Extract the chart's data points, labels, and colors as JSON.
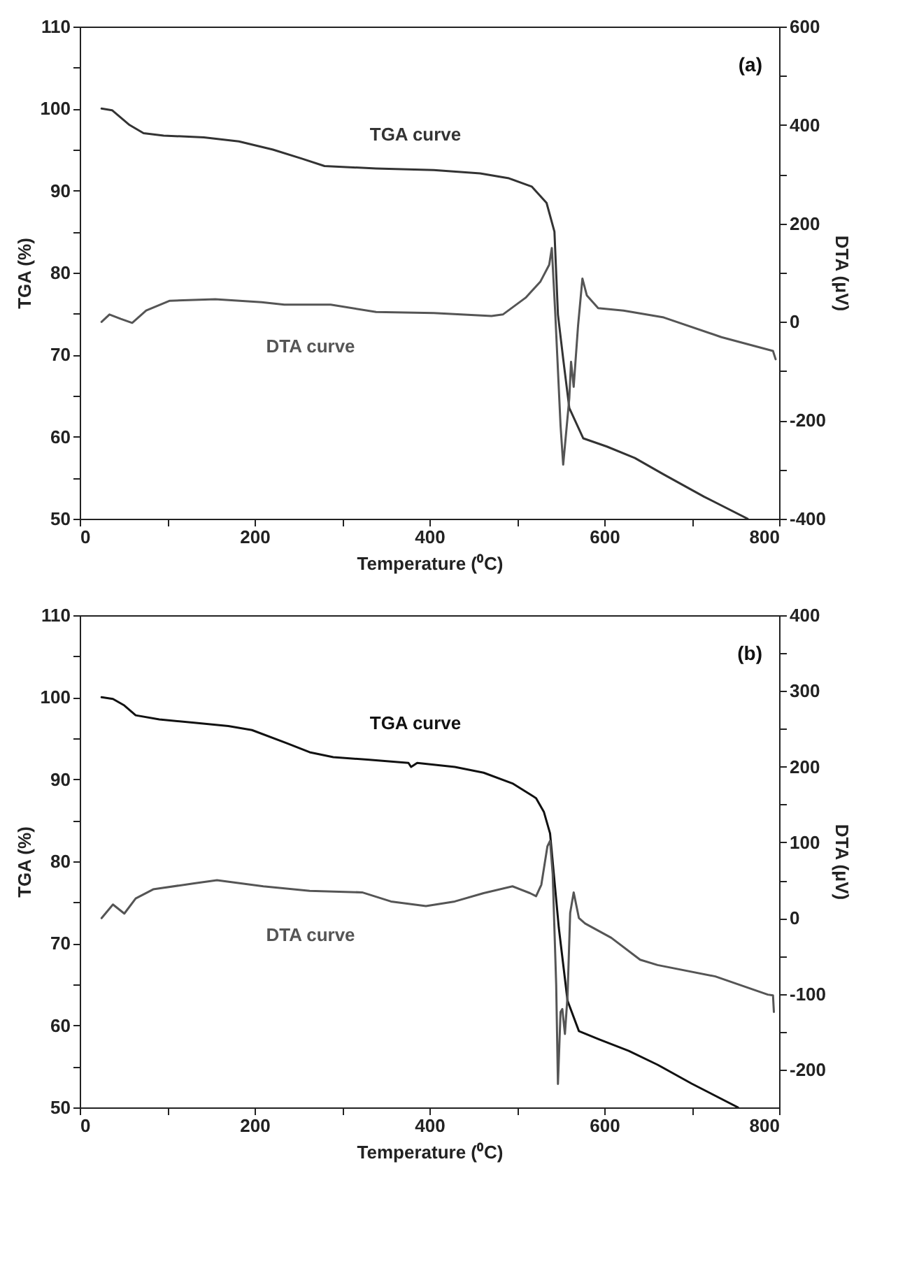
{
  "chart_data": [
    {
      "type": "line",
      "xlabel": "Temperature (⁰C)",
      "ylabel": "TGA (%)",
      "y2label": "DTA (μV)",
      "annotations": [
        "(a)"
      ],
      "xlim": [
        0,
        800
      ],
      "xticks": [
        0,
        {
          "value": 100,
          "label": null
        },
        200,
        {
          "value": 300,
          "label": null
        },
        400,
        {
          "value": 500,
          "label": null
        },
        600,
        {
          "value": 700,
          "label": null
        },
        800
      ],
      "ylim": [
        50,
        110
      ],
      "yticks": [
        50,
        {
          "value": 55,
          "label": null
        },
        60,
        {
          "value": 65,
          "label": null
        },
        70,
        {
          "value": 75,
          "label": null
        },
        80,
        {
          "value": 85,
          "label": null
        },
        90,
        {
          "value": 95,
          "label": null
        },
        100,
        {
          "value": 105,
          "label": null
        },
        110
      ],
      "y2lim": [
        -400,
        600
      ],
      "y2ticks": [
        -400,
        {
          "value": -300,
          "label": null
        },
        -200,
        {
          "value": -100,
          "label": null
        },
        0,
        {
          "value": 100,
          "label": null
        },
        200,
        {
          "value": 300,
          "label": null
        },
        400,
        {
          "value": 500,
          "label": null
        },
        600
      ],
      "series": [
        {
          "name": "TGA curve",
          "color": "#333333",
          "x": [
            25,
            37,
            57,
            73,
            96,
            142,
            182,
            221,
            254,
            280,
            339,
            405,
            458,
            491,
            517,
            534,
            543,
            547,
            553,
            560,
            576,
            603,
            635,
            668,
            714,
            764
          ],
          "values": [
            100,
            99.8,
            98,
            97,
            96.7,
            96.5,
            96,
            95,
            93.9,
            93,
            92.7,
            92.5,
            92.1,
            91.5,
            90.5,
            88.5,
            85,
            74.9,
            69.5,
            63.5,
            59.8,
            58.8,
            57.4,
            55.4,
            52.7,
            50
          ]
        },
        {
          "name": "DTA curve",
          "color": "#555555",
          "axis": "y2",
          "x": [
            25,
            34,
            47,
            60,
            76,
            103,
            155,
            208,
            234,
            287,
            339,
            405,
            471,
            484,
            510,
            527,
            537,
            540,
            544,
            550,
            553,
            560,
            562,
            565,
            570,
            575,
            580,
            593,
            622,
            668,
            734,
            793,
            796
          ],
          "values": [
            0,
            15,
            6,
            -2,
            23,
            43,
            46,
            40,
            35,
            35,
            20,
            18,
            12,
            15,
            49,
            82,
            116,
            150,
            15,
            -211,
            -290,
            -155,
            -81,
            -132,
            -8,
            88,
            54,
            28,
            23,
            9,
            -31,
            -59,
            -76
          ]
        }
      ]
    },
    {
      "type": "line",
      "xlabel": "Temperature (⁰C)",
      "ylabel": "TGA (%)",
      "y2label": "DTA (μV)",
      "annotations": [
        "(b)"
      ],
      "xlim": [
        0,
        800
      ],
      "xticks": [
        0,
        {
          "value": 100,
          "label": null
        },
        200,
        {
          "value": 300,
          "label": null
        },
        400,
        {
          "value": 500,
          "label": null
        },
        600,
        {
          "value": 700,
          "label": null
        },
        800
      ],
      "ylim": [
        50,
        110
      ],
      "yticks": [
        50,
        {
          "value": 55,
          "label": null
        },
        60,
        {
          "value": 65,
          "label": null
        },
        70,
        {
          "value": 75,
          "label": null
        },
        80,
        {
          "value": 85,
          "label": null
        },
        90,
        {
          "value": 95,
          "label": null
        },
        100,
        {
          "value": 105,
          "label": null
        },
        110
      ],
      "y2lim": [
        -250,
        400
      ],
      "y2ticks": [
        -200,
        {
          "value": -150,
          "label": null
        },
        -100,
        {
          "value": -50,
          "label": null
        },
        0,
        {
          "value": 50,
          "label": null
        },
        100,
        {
          "value": 150,
          "label": null
        },
        200,
        {
          "value": 250,
          "label": null
        },
        300,
        {
          "value": 350,
          "label": null
        },
        400
      ],
      "series": [
        {
          "name": "TGA curve",
          "color": "#111111",
          "x": [
            25,
            38,
            51,
            64,
            91,
            131,
            170,
            197,
            237,
            263,
            290,
            329,
            376,
            379,
            386,
            429,
            462,
            495,
            522,
            531,
            538,
            548,
            558,
            571,
            594,
            628,
            661,
            700,
            753
          ],
          "values": [
            100,
            99.8,
            99,
            97.8,
            97.3,
            96.9,
            96.5,
            96,
            94.4,
            93.3,
            92.7,
            92.4,
            92,
            91.5,
            92,
            91.5,
            90.8,
            89.5,
            87.7,
            86,
            83.4,
            71.9,
            63,
            59.3,
            58.3,
            56.9,
            55.2,
            52.9,
            50
          ]
        },
        {
          "name": "DTA curve",
          "color": "#555555",
          "axis": "y2",
          "x": [
            25,
            38,
            51,
            64,
            84,
            131,
            157,
            210,
            263,
            323,
            356,
            396,
            429,
            462,
            495,
            515,
            522,
            528,
            535,
            538,
            541,
            545,
            547,
            550,
            552,
            555,
            558,
            561,
            565,
            571,
            578,
            608,
            641,
            661,
            727,
            787,
            793,
            794
          ],
          "values": [
            0,
            18,
            6,
            26,
            38,
            46,
            50,
            42,
            36,
            34,
            22,
            16,
            22,
            33,
            42,
            33,
            29,
            44,
            95,
            102,
            58,
            -88,
            -219,
            -124,
            -120,
            -153,
            -102,
            7,
            34,
            0,
            -7,
            -26,
            -55,
            -62,
            -77,
            -101,
            -102,
            -124
          ]
        }
      ]
    }
  ]
}
